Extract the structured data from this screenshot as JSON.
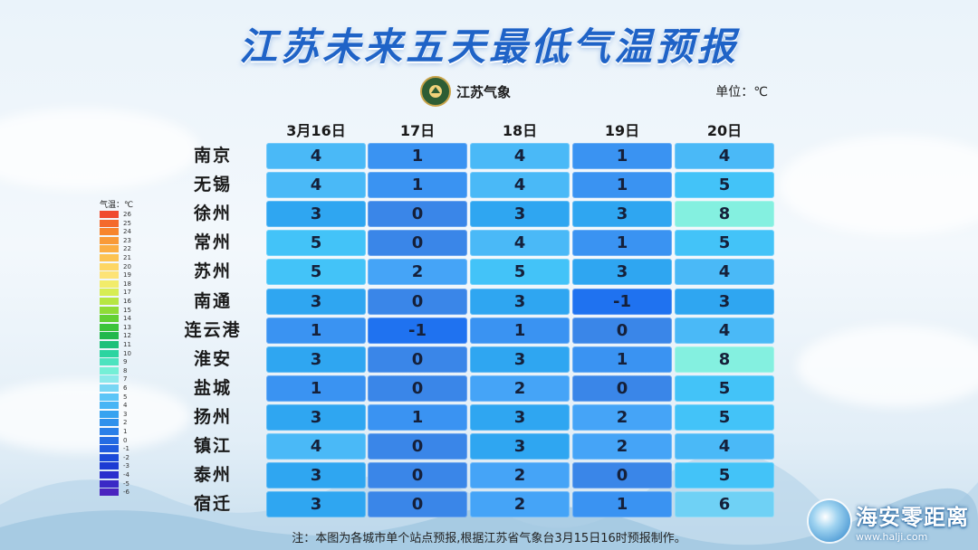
{
  "title": "江苏未来五天最低气温预报",
  "logo_text": "江苏气象",
  "unit_label": "单位：℃",
  "dates": [
    "3月16日",
    "17日",
    "18日",
    "19日",
    "20日"
  ],
  "rows": [
    {
      "city": "南京",
      "values": [
        "4",
        "1",
        "4",
        "1",
        "4"
      ]
    },
    {
      "city": "无锡",
      "values": [
        "4",
        "1",
        "4",
        "1",
        "5"
      ]
    },
    {
      "city": "徐州",
      "values": [
        "3",
        "0",
        "3",
        "3",
        "8"
      ]
    },
    {
      "city": "常州",
      "values": [
        "5",
        "0",
        "4",
        "1",
        "5"
      ]
    },
    {
      "city": "苏州",
      "values": [
        "5",
        "2",
        "5",
        "3",
        "4"
      ]
    },
    {
      "city": "南通",
      "values": [
        "3",
        "0",
        "3",
        "-1",
        "3"
      ]
    },
    {
      "city": "连云港",
      "values": [
        "1",
        "-1",
        "1",
        "0",
        "4"
      ]
    },
    {
      "city": "淮安",
      "values": [
        "3",
        "0",
        "3",
        "1",
        "8"
      ]
    },
    {
      "city": "盐城",
      "values": [
        "1",
        "0",
        "2",
        "0",
        "5"
      ]
    },
    {
      "city": "扬州",
      "values": [
        "3",
        "1",
        "3",
        "2",
        "5"
      ]
    },
    {
      "city": "镇江",
      "values": [
        "4",
        "0",
        "3",
        "2",
        "4"
      ]
    },
    {
      "city": "泰州",
      "values": [
        "3",
        "0",
        "2",
        "0",
        "5"
      ]
    },
    {
      "city": "宿迁",
      "values": [
        "3",
        "0",
        "2",
        "1",
        "6"
      ]
    }
  ],
  "color_scale": {
    "-1": "#1f72f0",
    "0": "#3a86e8",
    "1": "#3a93f2",
    "2": "#45a4f7",
    "3": "#2fa6f1",
    "4": "#4ab9f7",
    "5": "#43c3f8",
    "6": "#6fd1f5",
    "8": "#84f0e0"
  },
  "legend": {
    "title": "气温：℃",
    "items": [
      {
        "label": "26",
        "color": "#f04a2e"
      },
      {
        "label": "25",
        "color": "#f46a2c"
      },
      {
        "label": "24",
        "color": "#f7852d"
      },
      {
        "label": "23",
        "color": "#f99a38"
      },
      {
        "label": "22",
        "color": "#fbae44"
      },
      {
        "label": "21",
        "color": "#fcc352"
      },
      {
        "label": "20",
        "color": "#fdd664"
      },
      {
        "label": "19",
        "color": "#fde376"
      },
      {
        "label": "18",
        "color": "#f2ec6a"
      },
      {
        "label": "17",
        "color": "#d7ed53"
      },
      {
        "label": "16",
        "color": "#b6e642"
      },
      {
        "label": "15",
        "color": "#8fdc37"
      },
      {
        "label": "14",
        "color": "#62d034"
      },
      {
        "label": "13",
        "color": "#3cc43b"
      },
      {
        "label": "12",
        "color": "#22b84c"
      },
      {
        "label": "11",
        "color": "#1ec07a"
      },
      {
        "label": "10",
        "color": "#2bd4a0"
      },
      {
        "label": "9",
        "color": "#4de3bf"
      },
      {
        "label": "8",
        "color": "#74efd6"
      },
      {
        "label": "7",
        "color": "#8ce9ea"
      },
      {
        "label": "6",
        "color": "#78d6f4"
      },
      {
        "label": "5",
        "color": "#5cc5f7"
      },
      {
        "label": "4",
        "color": "#48b5f5"
      },
      {
        "label": "3",
        "color": "#38a3f0"
      },
      {
        "label": "2",
        "color": "#2f91ec"
      },
      {
        "label": "1",
        "color": "#2a7fe8"
      },
      {
        "label": "0",
        "color": "#246ce3"
      },
      {
        "label": "-1",
        "color": "#1f5bde"
      },
      {
        "label": "-2",
        "color": "#1b4ad9"
      },
      {
        "label": "-3",
        "color": "#1d3bd3"
      },
      {
        "label": "-4",
        "color": "#2a30cd"
      },
      {
        "label": "-5",
        "color": "#3a29c6"
      },
      {
        "label": "-6",
        "color": "#4b24bf"
      }
    ]
  },
  "note": "注：本图为各城市单个站点预报,根据江苏省气象台3月15日16时预报制作。",
  "watermark": {
    "name": "海安零距离",
    "url": "www.halji.com"
  }
}
